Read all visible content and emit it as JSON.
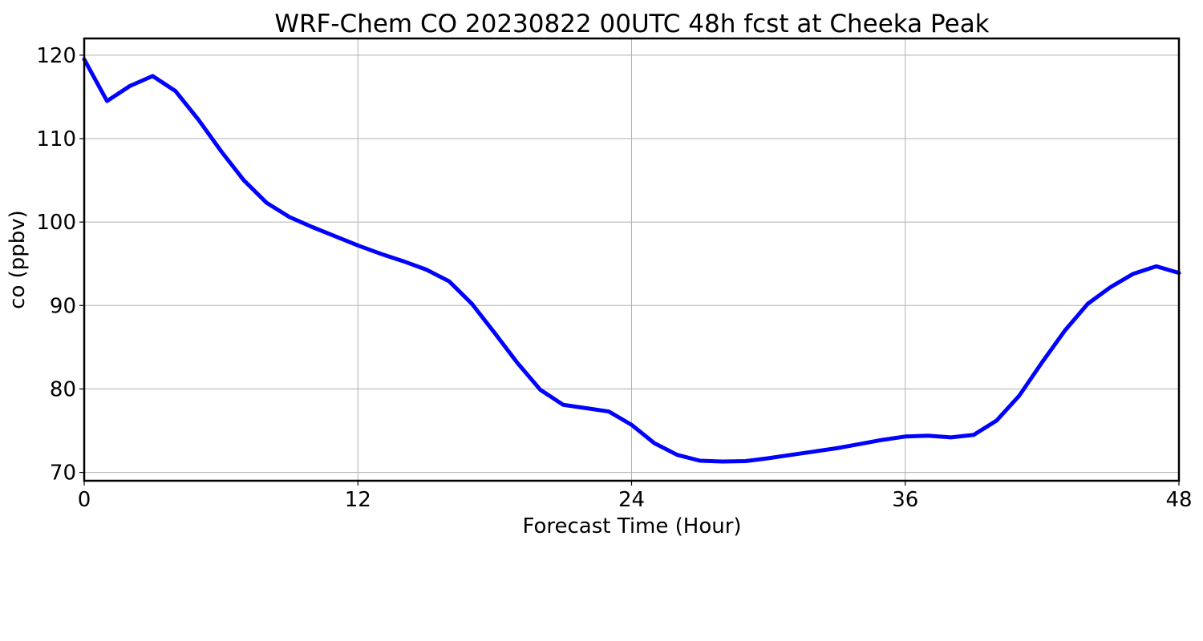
{
  "chart_data": {
    "type": "line",
    "title": "WRF-Chem CO  20230822 00UTC 48h fcst at Cheeka Peak",
    "xlabel": "Forecast Time (Hour)",
    "ylabel": "co  (ppbv)",
    "xlim": [
      0,
      48
    ],
    "ylim": [
      69,
      122
    ],
    "xticks": [
      0,
      12,
      24,
      36,
      48
    ],
    "yticks": [
      70,
      80,
      90,
      100,
      110,
      120
    ],
    "grid": true,
    "line_color": "#0000ff",
    "x": [
      0,
      1,
      2,
      3,
      4,
      5,
      6,
      7,
      8,
      9,
      10,
      11,
      12,
      13,
      14,
      15,
      16,
      17,
      18,
      19,
      20,
      21,
      22,
      23,
      24,
      25,
      26,
      27,
      28,
      29,
      30,
      31,
      32,
      33,
      34,
      35,
      36,
      37,
      38,
      39,
      40,
      41,
      42,
      43,
      44,
      45,
      46,
      47,
      48
    ],
    "series": [
      {
        "values": [
          119.5,
          114.5,
          116.3,
          117.5,
          115.7,
          112.3,
          108.5,
          105.0,
          102.3,
          100.6,
          99.4,
          98.3,
          97.2,
          96.2,
          95.3,
          94.3,
          92.9,
          90.2,
          86.7,
          83.1,
          79.9,
          78.1,
          77.7,
          77.3,
          75.7,
          73.5,
          72.1,
          71.4,
          71.3,
          71.35,
          71.7,
          72.1,
          72.5,
          72.9,
          73.4,
          73.9,
          74.3,
          74.4,
          74.2,
          74.5,
          76.2,
          79.2,
          83.2,
          87.0,
          90.2,
          92.2,
          93.8,
          94.7,
          93.9
        ]
      }
    ]
  }
}
